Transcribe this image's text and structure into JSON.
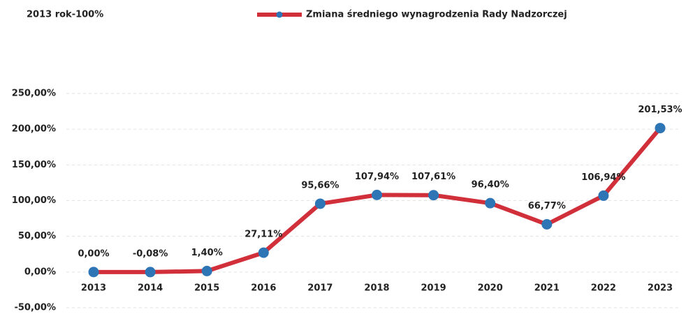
{
  "chart_data": {
    "type": "line",
    "annotation": "2013 rok-100%",
    "categories": [
      "2013",
      "2014",
      "2015",
      "2016",
      "2017",
      "2018",
      "2019",
      "2020",
      "2021",
      "2022",
      "2023"
    ],
    "series": [
      {
        "name": "Zmiana średniego wynagrodzenia Rady Nadzorczej",
        "color": "#d12f3a",
        "marker_color": "#2e75b6",
        "values": [
          0,
          -0.08,
          1.4,
          27.11,
          95.66,
          107.94,
          107.61,
          96.4,
          66.77,
          106.94,
          201.53
        ],
        "value_labels": [
          "0,00%",
          "-0,08%",
          "1,40%",
          "27,11%",
          "95,66%",
          "107,94%",
          "107,61%",
          "96,40%",
          "66,77%",
          "106,94%",
          "201,53%"
        ]
      }
    ],
    "ylim": [
      -50,
      250
    ],
    "yticks": [
      {
        "value": -50,
        "label": "-50,00%"
      },
      {
        "value": 0,
        "label": "0,00%"
      },
      {
        "value": 50,
        "label": "50,00%"
      },
      {
        "value": 100,
        "label": "100,00%"
      },
      {
        "value": 150,
        "label": "150,00%"
      },
      {
        "value": 200,
        "label": "200,00%"
      },
      {
        "value": 250,
        "label": "250,00%"
      }
    ],
    "grid": true,
    "legend": "top"
  }
}
